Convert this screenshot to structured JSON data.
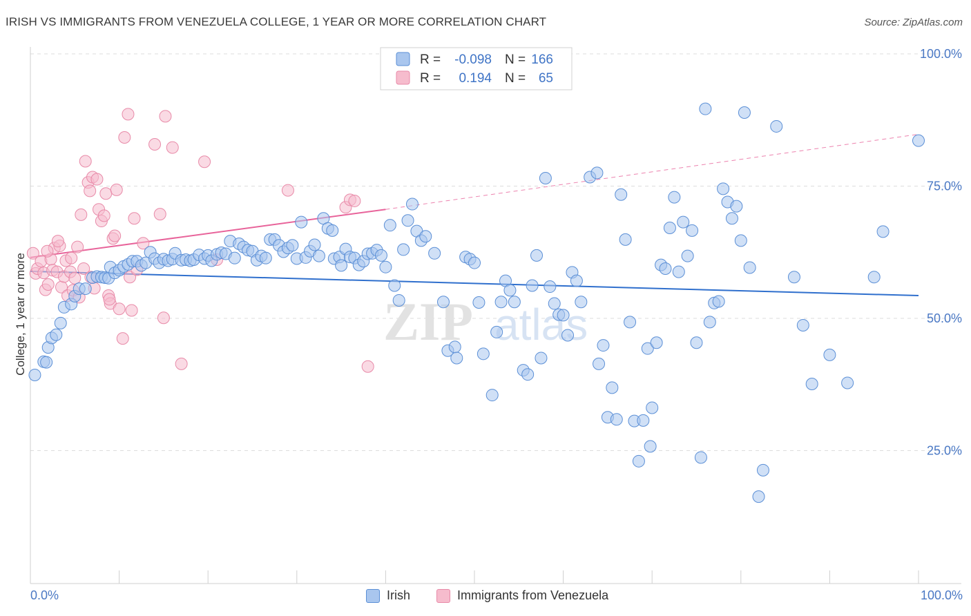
{
  "title": "IRISH VS IMMIGRANTS FROM VENEZUELA COLLEGE, 1 YEAR OR MORE CORRELATION CHART",
  "source": "Source: ZipAtlas.com",
  "watermark": {
    "zip": "ZIP",
    "atlas": "atlas"
  },
  "colors": {
    "irish_fill": "#a9c6ee",
    "irish_stroke": "#5b8fd6",
    "irish_line": "#2f6fcd",
    "ven_fill": "#f6bccd",
    "ven_stroke": "#e88aa8",
    "ven_line": "#e8639a",
    "accent_text": "#4a78c4"
  },
  "legend_top": {
    "rows": [
      {
        "r_label": "R =",
        "r_value": "-0.098",
        "n_label": "N =",
        "n_value": "166"
      },
      {
        "r_label": "R =",
        "r_value": "0.194",
        "n_label": "N =",
        "n_value": "65"
      }
    ]
  },
  "legend_bottom": {
    "items": [
      "Irish",
      "Immigrants from Venezuela"
    ]
  },
  "chart_data": {
    "type": "scatter",
    "title": "IRISH VS IMMIGRANTS FROM VENEZUELA COLLEGE, 1 YEAR OR MORE CORRELATION CHART",
    "xlabel": "",
    "ylabel": "College, 1 year or more",
    "xlim": [
      0,
      100
    ],
    "ylim": [
      0,
      105
    ],
    "x_tick_labels": [
      "0.0%",
      "100.0%"
    ],
    "y_tick_labels": [
      "25.0%",
      "50.0%",
      "75.0%",
      "100.0%"
    ],
    "y_ticks": [
      25,
      50,
      75,
      100
    ],
    "grid": true,
    "legend_position": "top-center",
    "series": [
      {
        "name": "Irish",
        "r": -0.098,
        "n": 166,
        "trend": {
          "x": [
            0,
            100
          ],
          "y": [
            58.9,
            54.3
          ]
        },
        "points": [
          [
            0.5,
            39.3
          ],
          [
            1.5,
            41.8
          ],
          [
            1.8,
            41.7
          ],
          [
            2,
            44.5
          ],
          [
            2.4,
            46.3
          ],
          [
            2.9,
            46.9
          ],
          [
            3.4,
            49.1
          ],
          [
            3.8,
            52.1
          ],
          [
            4.6,
            52.7
          ],
          [
            5,
            54.2
          ],
          [
            5.5,
            55.6
          ],
          [
            6.2,
            55.6
          ],
          [
            7,
            57.7
          ],
          [
            7.5,
            57.9
          ],
          [
            8,
            57.8
          ],
          [
            8.4,
            57.7
          ],
          [
            8.8,
            57.6
          ],
          [
            9,
            59.7
          ],
          [
            9.5,
            58.6
          ],
          [
            10,
            59.1
          ],
          [
            10.5,
            59.8
          ],
          [
            11,
            60.2
          ],
          [
            11.5,
            60.8
          ],
          [
            12,
            60.8
          ],
          [
            12.5,
            60
          ],
          [
            13,
            60.5
          ],
          [
            13.5,
            62.5
          ],
          [
            14,
            61.3
          ],
          [
            14.5,
            60.5
          ],
          [
            15,
            61.2
          ],
          [
            15.5,
            60.9
          ],
          [
            16,
            61.2
          ],
          [
            16.3,
            62.3
          ],
          [
            17,
            61
          ],
          [
            17.5,
            61.1
          ],
          [
            18,
            60.9
          ],
          [
            18.4,
            61.1
          ],
          [
            19,
            62
          ],
          [
            19.6,
            61.3
          ],
          [
            20,
            61.9
          ],
          [
            20.4,
            60.9
          ],
          [
            21,
            62.1
          ],
          [
            21.5,
            62.4
          ],
          [
            22,
            62.2
          ],
          [
            22.5,
            64.6
          ],
          [
            23,
            61.4
          ],
          [
            23.5,
            64.1
          ],
          [
            24,
            63.5
          ],
          [
            24.5,
            62.9
          ],
          [
            25,
            62.7
          ],
          [
            25.5,
            61
          ],
          [
            26,
            61.8
          ],
          [
            26.5,
            61.4
          ],
          [
            27,
            64.9
          ],
          [
            27.5,
            64.9
          ],
          [
            28,
            63.8
          ],
          [
            28.5,
            62.6
          ],
          [
            29,
            63.3
          ],
          [
            29.5,
            63.8
          ],
          [
            30,
            61.3
          ],
          [
            30.5,
            68.2
          ],
          [
            31,
            61.5
          ],
          [
            31.5,
            62.7
          ],
          [
            32,
            63.9
          ],
          [
            32.5,
            61.8
          ],
          [
            33,
            68.9
          ],
          [
            33.5,
            67
          ],
          [
            34,
            66.6
          ],
          [
            34.2,
            61.3
          ],
          [
            34.8,
            61.6
          ],
          [
            35,
            60
          ],
          [
            35.5,
            63.1
          ],
          [
            36,
            61.6
          ],
          [
            36.5,
            61.4
          ],
          [
            37,
            60.1
          ],
          [
            37.5,
            60.8
          ],
          [
            38,
            62.2
          ],
          [
            38.5,
            62.3
          ],
          [
            39,
            62.9
          ],
          [
            39.5,
            61.9
          ],
          [
            40,
            59.7
          ],
          [
            40.5,
            67.6
          ],
          [
            41,
            56.2
          ],
          [
            41.5,
            53.4
          ],
          [
            42,
            63
          ],
          [
            42.5,
            68.5
          ],
          [
            43,
            71.6
          ],
          [
            43.5,
            66.5
          ],
          [
            44,
            64.7
          ],
          [
            44.5,
            65.5
          ],
          [
            45.5,
            62.3
          ],
          [
            46.5,
            53.1
          ],
          [
            47,
            43.9
          ],
          [
            47.8,
            44.6
          ],
          [
            48,
            42.5
          ],
          [
            49,
            61.6
          ],
          [
            49.5,
            61.2
          ],
          [
            50,
            60.5
          ],
          [
            50.5,
            53
          ],
          [
            51,
            43.3
          ],
          [
            52,
            35.5
          ],
          [
            52.5,
            47.4
          ],
          [
            53,
            53.1
          ],
          [
            53.5,
            57.1
          ],
          [
            54,
            55.3
          ],
          [
            54.5,
            53.1
          ],
          [
            55.5,
            40.2
          ],
          [
            56,
            39.4
          ],
          [
            56.5,
            56.2
          ],
          [
            57,
            61.9
          ],
          [
            57.5,
            42.5
          ],
          [
            58,
            76.5
          ],
          [
            58.5,
            56
          ],
          [
            59,
            52.8
          ],
          [
            59.5,
            50.7
          ],
          [
            60,
            50.6
          ],
          [
            60.5,
            46.8
          ],
          [
            61,
            58.7
          ],
          [
            61.5,
            57.1
          ],
          [
            62,
            53.1
          ],
          [
            63,
            76.7
          ],
          [
            63.8,
            77.5
          ],
          [
            64,
            41.4
          ],
          [
            64.5,
            44.9
          ],
          [
            65,
            31.3
          ],
          [
            65.5,
            36.9
          ],
          [
            66,
            30.9
          ],
          [
            66.5,
            73.4
          ],
          [
            67,
            64.9
          ],
          [
            67.5,
            49.3
          ],
          [
            68,
            30.6
          ],
          [
            68.5,
            23
          ],
          [
            69,
            30.7
          ],
          [
            69.5,
            44.3
          ],
          [
            69.8,
            25.8
          ],
          [
            70,
            33.1
          ],
          [
            70.5,
            45.4
          ],
          [
            71,
            60.1
          ],
          [
            71.5,
            59.4
          ],
          [
            72,
            67.1
          ],
          [
            72.5,
            72.9
          ],
          [
            73,
            58.8
          ],
          [
            73.5,
            68.2
          ],
          [
            74,
            61.8
          ],
          [
            74.5,
            66.6
          ],
          [
            75,
            45.4
          ],
          [
            75.5,
            23.7
          ],
          [
            76,
            89.6
          ],
          [
            76.5,
            49.3
          ],
          [
            77,
            52.9
          ],
          [
            77.5,
            53.2
          ],
          [
            78,
            74.5
          ],
          [
            78.5,
            72
          ],
          [
            79,
            68.9
          ],
          [
            79.5,
            71.2
          ],
          [
            80,
            64.7
          ],
          [
            80.4,
            88.9
          ],
          [
            81,
            59.6
          ],
          [
            82,
            16.3
          ],
          [
            82.5,
            21.3
          ],
          [
            84,
            86.3
          ],
          [
            86,
            57.8
          ],
          [
            87,
            48.7
          ],
          [
            88,
            37.6
          ],
          [
            90,
            43.1
          ],
          [
            92,
            37.8
          ],
          [
            95,
            57.8
          ],
          [
            96,
            66.4
          ],
          [
            100,
            83.6
          ]
        ]
      },
      {
        "name": "Immigrants from Venezuela",
        "r": 0.194,
        "n": 65,
        "trend": {
          "x": [
            0,
            40
          ],
          "y": [
            61.5,
            70.6
          ]
        },
        "trend_extension": {
          "x": [
            40,
            100
          ],
          "y": [
            70.6,
            84.8
          ]
        },
        "points": [
          [
            0.3,
            62.3
          ],
          [
            0.6,
            58.5
          ],
          [
            0.8,
            59.4
          ],
          [
            1.2,
            60.8
          ],
          [
            1.5,
            58.6
          ],
          [
            1.7,
            55.4
          ],
          [
            2,
            56.4
          ],
          [
            2.3,
            61.2
          ],
          [
            2.5,
            59.1
          ],
          [
            2.7,
            63.3
          ],
          [
            3,
            58.8
          ],
          [
            3.3,
            63.7
          ],
          [
            3.5,
            55.9
          ],
          [
            3.8,
            57.9
          ],
          [
            4,
            60.9
          ],
          [
            4.2,
            54.3
          ],
          [
            4.5,
            58.8
          ],
          [
            4.8,
            55.3
          ],
          [
            5,
            57.6
          ],
          [
            5.3,
            63.5
          ],
          [
            5.5,
            54
          ],
          [
            5.7,
            69.6
          ],
          [
            6,
            59.4
          ],
          [
            6.2,
            79.7
          ],
          [
            6.5,
            75.7
          ],
          [
            6.7,
            74.1
          ],
          [
            7,
            76.7
          ],
          [
            7.5,
            76.3
          ],
          [
            7.7,
            70.6
          ],
          [
            8,
            68.4
          ],
          [
            8.3,
            69.4
          ],
          [
            8.5,
            73.6
          ],
          [
            8.8,
            54.3
          ],
          [
            9,
            52.8
          ],
          [
            9.3,
            65.1
          ],
          [
            9.5,
            65.6
          ],
          [
            9.7,
            74.3
          ],
          [
            10,
            51.8
          ],
          [
            10.4,
            46.2
          ],
          [
            10.6,
            84.2
          ],
          [
            11,
            88.6
          ],
          [
            11.2,
            57.8
          ],
          [
            11.4,
            51.5
          ],
          [
            11.7,
            68.9
          ],
          [
            12,
            59.2
          ],
          [
            12.7,
            64.2
          ],
          [
            14,
            82.9
          ],
          [
            14.6,
            69.7
          ],
          [
            15,
            50.1
          ],
          [
            15.2,
            88.2
          ],
          [
            16,
            82.3
          ],
          [
            17,
            41.4
          ],
          [
            19.6,
            79.6
          ],
          [
            21,
            61.1
          ],
          [
            29,
            74.2
          ],
          [
            35.5,
            71
          ],
          [
            36,
            72.4
          ],
          [
            36.5,
            72.2
          ],
          [
            38,
            40.9
          ],
          [
            7.2,
            55.7
          ],
          [
            4.6,
            61.4
          ],
          [
            3.1,
            64.6
          ],
          [
            1.9,
            62.7
          ],
          [
            8.9,
            53.6
          ],
          [
            6.8,
            57.8
          ]
        ]
      }
    ]
  }
}
